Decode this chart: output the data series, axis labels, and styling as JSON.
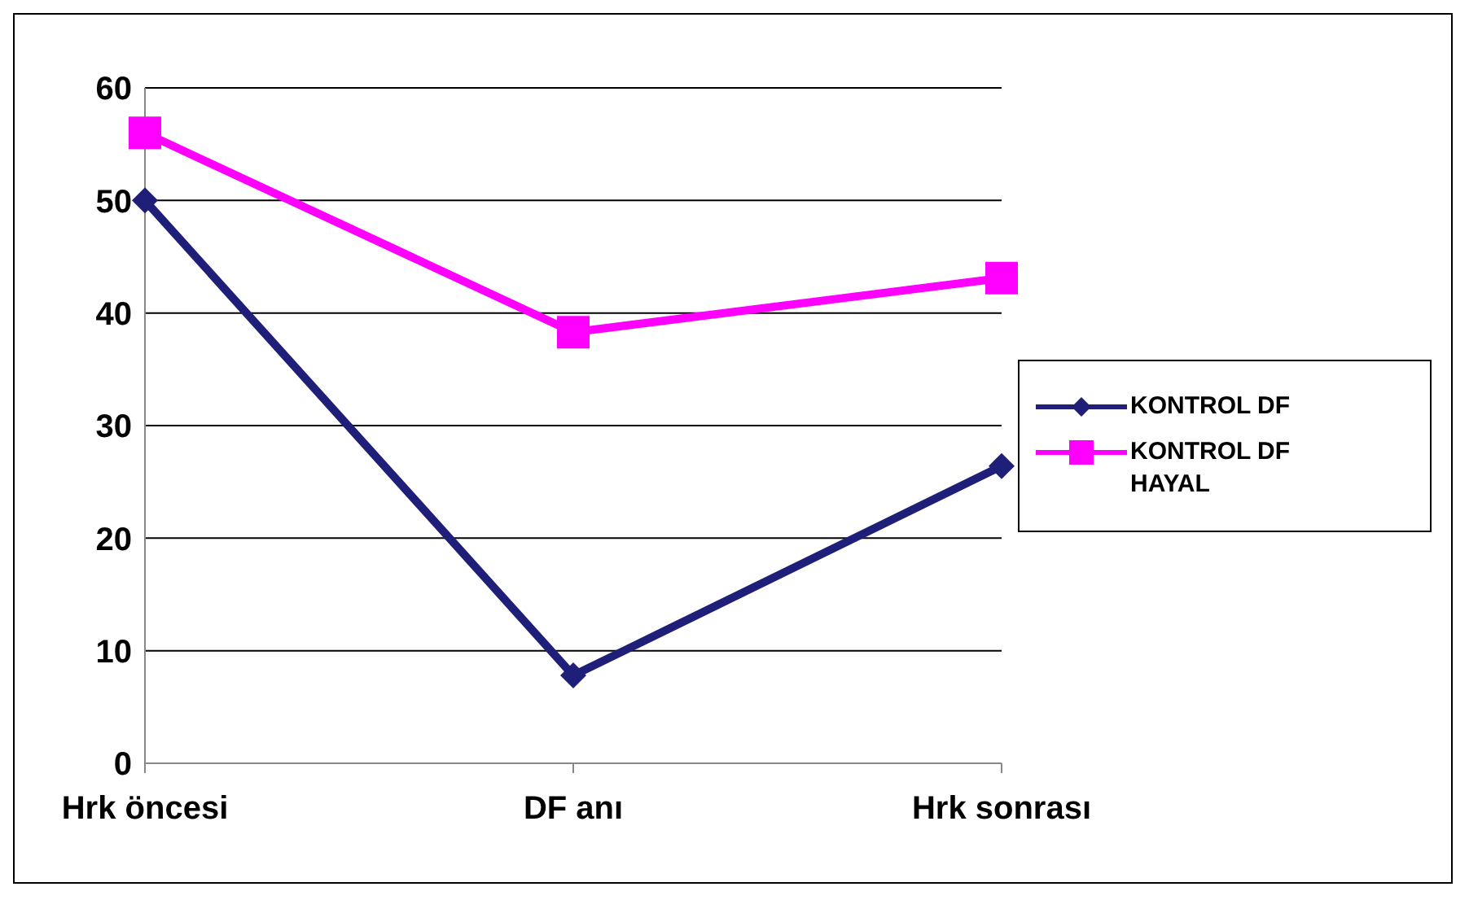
{
  "chart_data": {
    "type": "line",
    "categories": [
      "Hrk öncesi",
      "DF anı",
      "Hrk sonrası"
    ],
    "series": [
      {
        "name": "KONTROL DF",
        "color": "#1f1f7a",
        "marker": "diamond",
        "values": [
          50,
          7.8,
          26.4
        ]
      },
      {
        "name": "KONTROL DF HAYAL",
        "color": "#ff00ff",
        "marker": "square",
        "values": [
          56,
          38.3,
          43.1
        ]
      }
    ],
    "ylim": [
      0,
      60
    ],
    "yticks": [
      0,
      10,
      20,
      30,
      40,
      50,
      60
    ],
    "grid": "y",
    "legend": "right",
    "line_style": "solid"
  }
}
